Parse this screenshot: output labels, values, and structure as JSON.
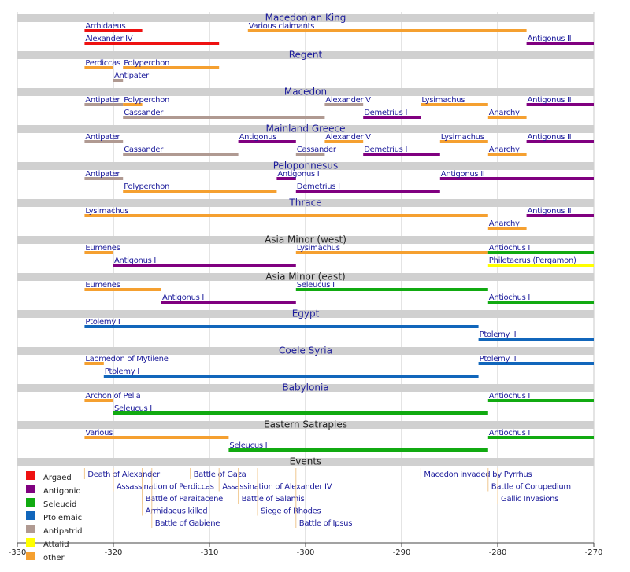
{
  "chart_data": {
    "type": "timeline",
    "xlim": [
      -330,
      -270
    ],
    "xticks": [
      -330,
      -320,
      -310,
      -300,
      -290,
      -280,
      -270
    ],
    "grid": true,
    "legend": [
      {
        "name": "Argaed",
        "color": "#ee1111"
      },
      {
        "name": "Antigonid",
        "color": "#800080"
      },
      {
        "name": "Seleucid",
        "color": "#11aa11"
      },
      {
        "name": "Ptolemaic",
        "color": "#1166bb"
      },
      {
        "name": "Antipatrid",
        "color": "#b09a92"
      },
      {
        "name": "Attalid",
        "color": "#ffff00"
      },
      {
        "name": "other",
        "color": "#f5a030"
      }
    ],
    "sections": [
      {
        "title": "Macedonian King",
        "title_color": "#1a1a9a",
        "rows": [
          [
            {
              "label": "Arrhidaeus",
              "start": -323,
              "end": -317,
              "group": "Argaed"
            },
            {
              "label": "Various claimants",
              "start": -306,
              "end": -277,
              "group": "other"
            }
          ],
          [
            {
              "label": "Alexander IV",
              "start": -323,
              "end": -309,
              "group": "Argaed"
            },
            {
              "label": "Antigonus II",
              "start": -277,
              "end": -270,
              "group": "Antigonid"
            }
          ]
        ]
      },
      {
        "title": "Regent",
        "title_color": "#1a1a9a",
        "rows": [
          [
            {
              "label": "Perdiccas",
              "start": -323,
              "end": -320,
              "group": "other"
            },
            {
              "label": "Polyperchon",
              "start": -319,
              "end": -309,
              "group": "other"
            }
          ],
          [
            {
              "label": "Antipater",
              "start": -320,
              "end": -319,
              "group": "Antipatrid"
            }
          ]
        ]
      },
      {
        "title": "Macedon",
        "title_color": "#1a1a9a",
        "rows": [
          [
            {
              "label": "Antipater",
              "start": -323,
              "end": -319,
              "group": "Antipatrid"
            },
            {
              "label": "Polyperchon",
              "start": -319,
              "end": -317,
              "group": "other"
            },
            {
              "label": "Alexander V",
              "start": -298,
              "end": -294,
              "group": "Antipatrid"
            },
            {
              "label": "Lysimachus",
              "start": -288,
              "end": -281,
              "group": "other"
            },
            {
              "label": "Antigonus II",
              "start": -277,
              "end": -270,
              "group": "Antigonid"
            }
          ],
          [
            {
              "label": "Cassander",
              "start": -319,
              "end": -298,
              "group": "Antipatrid"
            },
            {
              "label": "Demetrius I",
              "start": -294,
              "end": -288,
              "group": "Antigonid"
            },
            {
              "label": "Anarchy",
              "start": -281,
              "end": -277,
              "group": "other"
            }
          ]
        ]
      },
      {
        "title": "Mainland Greece",
        "title_color": "#1a1a9a",
        "rows": [
          [
            {
              "label": "Antipater",
              "start": -323,
              "end": -319,
              "group": "Antipatrid"
            },
            {
              "label": "Antigonus I",
              "start": -307,
              "end": -301,
              "group": "Antigonid"
            },
            {
              "label": "Alexander V",
              "start": -298,
              "end": -294,
              "group": "other"
            },
            {
              "label": "Lysimachus",
              "start": -286,
              "end": -281,
              "group": "other"
            },
            {
              "label": "Antigonus II",
              "start": -277,
              "end": -270,
              "group": "Antigonid"
            }
          ],
          [
            {
              "label": "Cassander",
              "start": -319,
              "end": -307,
              "group": "Antipatrid"
            },
            {
              "label": "Cassander",
              "start": -301,
              "end": -298,
              "group": "Antipatrid"
            },
            {
              "label": "Demetrius I",
              "start": -294,
              "end": -286,
              "group": "Antigonid"
            },
            {
              "label": "Anarchy",
              "start": -281,
              "end": -277,
              "group": "other"
            }
          ]
        ]
      },
      {
        "title": "Peloponnesus",
        "title_color": "#1a1a9a",
        "rows": [
          [
            {
              "label": "Antipater",
              "start": -323,
              "end": -319,
              "group": "Antipatrid"
            },
            {
              "label": "Antigonus I",
              "start": -303,
              "end": -301,
              "group": "Antigonid"
            },
            {
              "label": "Antigonus II",
              "start": -286,
              "end": -270,
              "group": "Antigonid"
            }
          ],
          [
            {
              "label": "Polyperchon",
              "start": -319,
              "end": -303,
              "group": "other"
            },
            {
              "label": "Demetrius I",
              "start": -301,
              "end": -286,
              "group": "Antigonid"
            }
          ]
        ]
      },
      {
        "title": "Thrace",
        "title_color": "#1a1a9a",
        "rows": [
          [
            {
              "label": "Lysimachus",
              "start": -323,
              "end": -281,
              "group": "other"
            },
            {
              "label": "Antigonus II",
              "start": -277,
              "end": -270,
              "group": "Antigonid"
            }
          ],
          [
            {
              "label": "Anarchy",
              "start": -281,
              "end": -277,
              "group": "other"
            }
          ]
        ]
      },
      {
        "title": "Asia Minor (west)",
        "title_color": "#222222",
        "rows": [
          [
            {
              "label": "Eumenes",
              "start": -323,
              "end": -320,
              "group": "other"
            },
            {
              "label": "Lysimachus",
              "start": -301,
              "end": -281,
              "group": "other"
            },
            {
              "label": "Antiochus I",
              "start": -281,
              "end": -270,
              "group": "Seleucid"
            }
          ],
          [
            {
              "label": "Antigonus I",
              "start": -320,
              "end": -301,
              "group": "Antigonid"
            },
            {
              "label": "Philetaerus (Pergamon)",
              "start": -281,
              "end": -270,
              "group": "Attalid"
            }
          ]
        ]
      },
      {
        "title": "Asia Minor (east)",
        "title_color": "#222222",
        "rows": [
          [
            {
              "label": "Eumenes",
              "start": -323,
              "end": -315,
              "group": "other"
            },
            {
              "label": "Seleucus I",
              "start": -301,
              "end": -281,
              "group": "Seleucid"
            }
          ],
          [
            {
              "label": "Antigonus I",
              "start": -315,
              "end": -301,
              "group": "Antigonid"
            },
            {
              "label": "Antiochus I",
              "start": -281,
              "end": -270,
              "group": "Seleucid"
            }
          ]
        ]
      },
      {
        "title": "Egypt",
        "title_color": "#1a1a9a",
        "rows": [
          [
            {
              "label": "Ptolemy I",
              "start": -323,
              "end": -282,
              "group": "Ptolemaic"
            }
          ],
          [
            {
              "label": "Ptolemy II",
              "start": -282,
              "end": -270,
              "group": "Ptolemaic"
            }
          ]
        ]
      },
      {
        "title": "Coele Syria",
        "title_color": "#1a1a9a",
        "rows": [
          [
            {
              "label": "Laomedon of Mytilene",
              "start": -323,
              "end": -321,
              "group": "other"
            },
            {
              "label": "Ptolemy II",
              "start": -282,
              "end": -270,
              "group": "Ptolemaic"
            }
          ],
          [
            {
              "label": "Ptolemy I",
              "start": -321,
              "end": -282,
              "group": "Ptolemaic"
            }
          ]
        ]
      },
      {
        "title": "Babylonia",
        "title_color": "#1a1a9a",
        "rows": [
          [
            {
              "label": "Archon of Pella",
              "start": -323,
              "end": -320,
              "group": "other"
            },
            {
              "label": "Antiochus I",
              "start": -281,
              "end": -270,
              "group": "Seleucid"
            }
          ],
          [
            {
              "label": "Seleucus I",
              "start": -320,
              "end": -281,
              "group": "Seleucid"
            }
          ]
        ]
      },
      {
        "title": "Eastern Satrapies",
        "title_color": "#222222",
        "rows": [
          [
            {
              "label": "Various",
              "start": -323,
              "end": -308,
              "group": "other"
            },
            {
              "label": "Antiochus I",
              "start": -281,
              "end": -270,
              "group": "Seleucid"
            }
          ],
          [
            {
              "label": "Seleucus I",
              "start": -308,
              "end": -281,
              "group": "Seleucid"
            }
          ]
        ]
      }
    ],
    "events": {
      "title": "Events",
      "lanes": [
        [
          {
            "label": "Death of Alexander",
            "year": -323
          },
          {
            "label": "Battle of Gaza",
            "year": -312
          },
          {
            "label": "Macedon invaded by Pyrrhus",
            "year": -288
          }
        ],
        [
          {
            "label": "Assassination of Perdiccas",
            "year": -320
          },
          {
            "label": "Assassination of Alexander IV",
            "year": -309
          },
          {
            "label": "Battle of Corupedium",
            "year": -281
          }
        ],
        [
          {
            "label": "Battle of Paraitacene",
            "year": -317
          },
          {
            "label": "Battle of Salamis",
            "year": -307
          },
          {
            "label": "Gallic Invasions",
            "year": -280
          }
        ],
        [
          {
            "label": "Arrhidaeus killed",
            "year": -317
          },
          {
            "label": "Siege of Rhodes",
            "year": -305
          }
        ],
        [
          {
            "label": "Battle of Gabiene",
            "year": -316
          },
          {
            "label": "Battle of Ipsus",
            "year": -301
          }
        ]
      ]
    }
  }
}
